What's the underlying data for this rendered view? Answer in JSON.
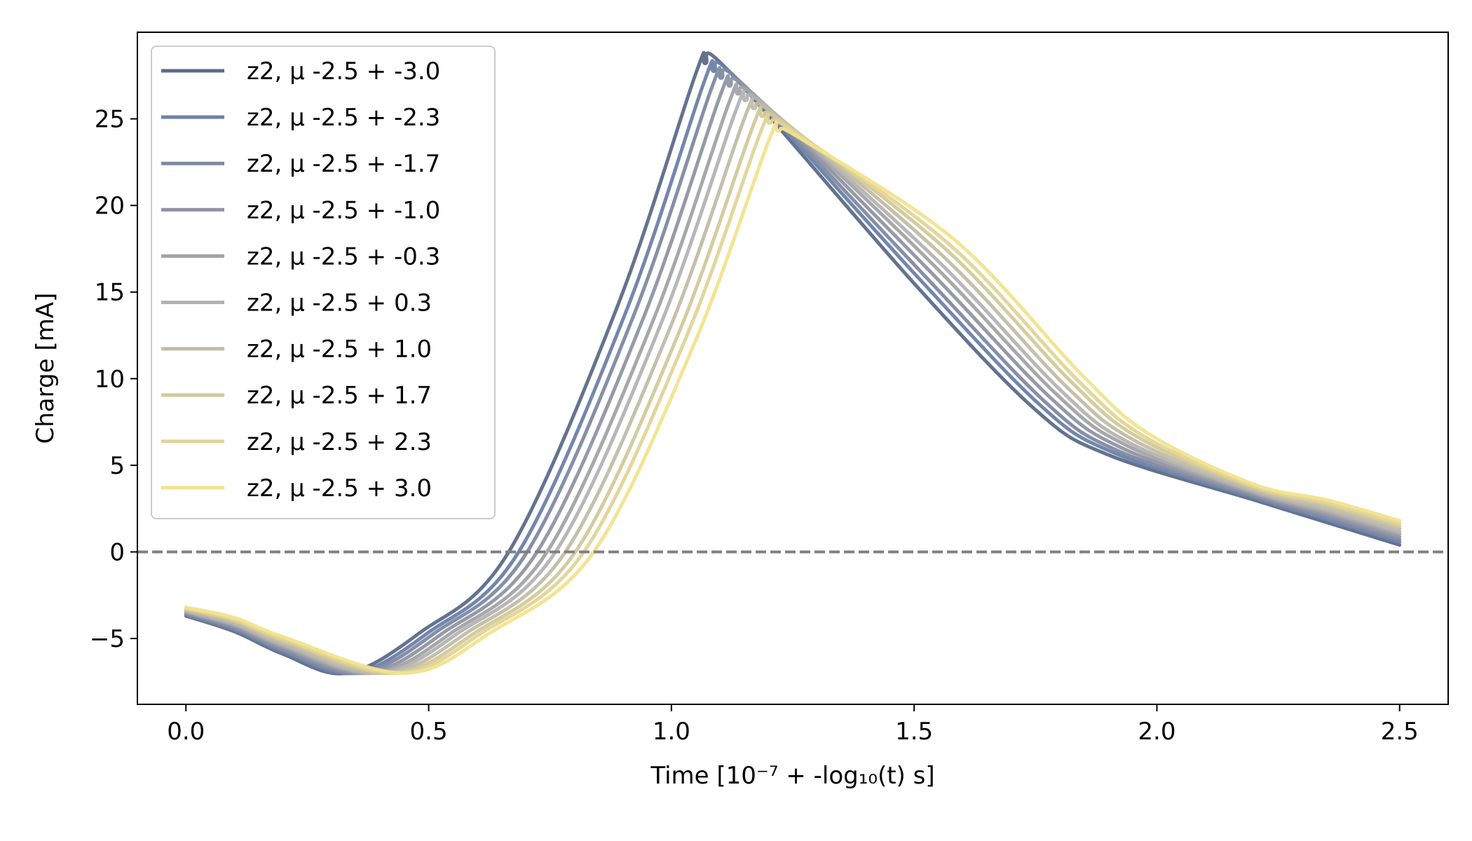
{
  "chart_data": {
    "type": "line",
    "xlabel": "Time [10⁻⁷ + -log₁₀(t) s]",
    "ylabel": "Charge [mA]",
    "xlim": [
      -0.1,
      2.6
    ],
    "ylim": [
      -8.8,
      30.0
    ],
    "xticks": [
      "0.0",
      "0.5",
      "1.0",
      "1.5",
      "2.0",
      "2.5"
    ],
    "yticks": [
      "−5",
      "0",
      "5",
      "10",
      "15",
      "20",
      "25"
    ],
    "grid": false,
    "legend_position": "upper-left",
    "reference_line": {
      "y": 0,
      "style": "dashed",
      "color": "#808080"
    },
    "series": [
      {
        "name": "z2, μ -2.5 + -3.0",
        "color": "#5b6c89",
        "offset": -3.0
      },
      {
        "name": "z2, μ -2.5 + -2.3",
        "color": "#6b80a8",
        "offset": -2.3
      },
      {
        "name": "z2, μ -2.5 + -1.7",
        "color": "#7e89a2",
        "offset": -1.7
      },
      {
        "name": "z2, μ -2.5 + -1.0",
        "color": "#9093a3",
        "offset": -1.0
      },
      {
        "name": "z2, μ -2.5 + -0.3",
        "color": "#a3a3a7",
        "offset": -0.3
      },
      {
        "name": "z2, μ -2.5 + 0.3",
        "color": "#b3b3b3",
        "offset": 0.3
      },
      {
        "name": "z2, μ -2.5 + 1.0",
        "color": "#c2bca7",
        "offset": 1.0
      },
      {
        "name": "z2, μ -2.5 + 1.7",
        "color": "#d2c99a",
        "offset": 1.7
      },
      {
        "name": "z2, μ -2.5 + 2.3",
        "color": "#e2d496",
        "offset": 2.3
      },
      {
        "name": "z2, μ -2.5 + 3.0",
        "color": "#f2e38d",
        "offset": 3.0
      }
    ]
  }
}
